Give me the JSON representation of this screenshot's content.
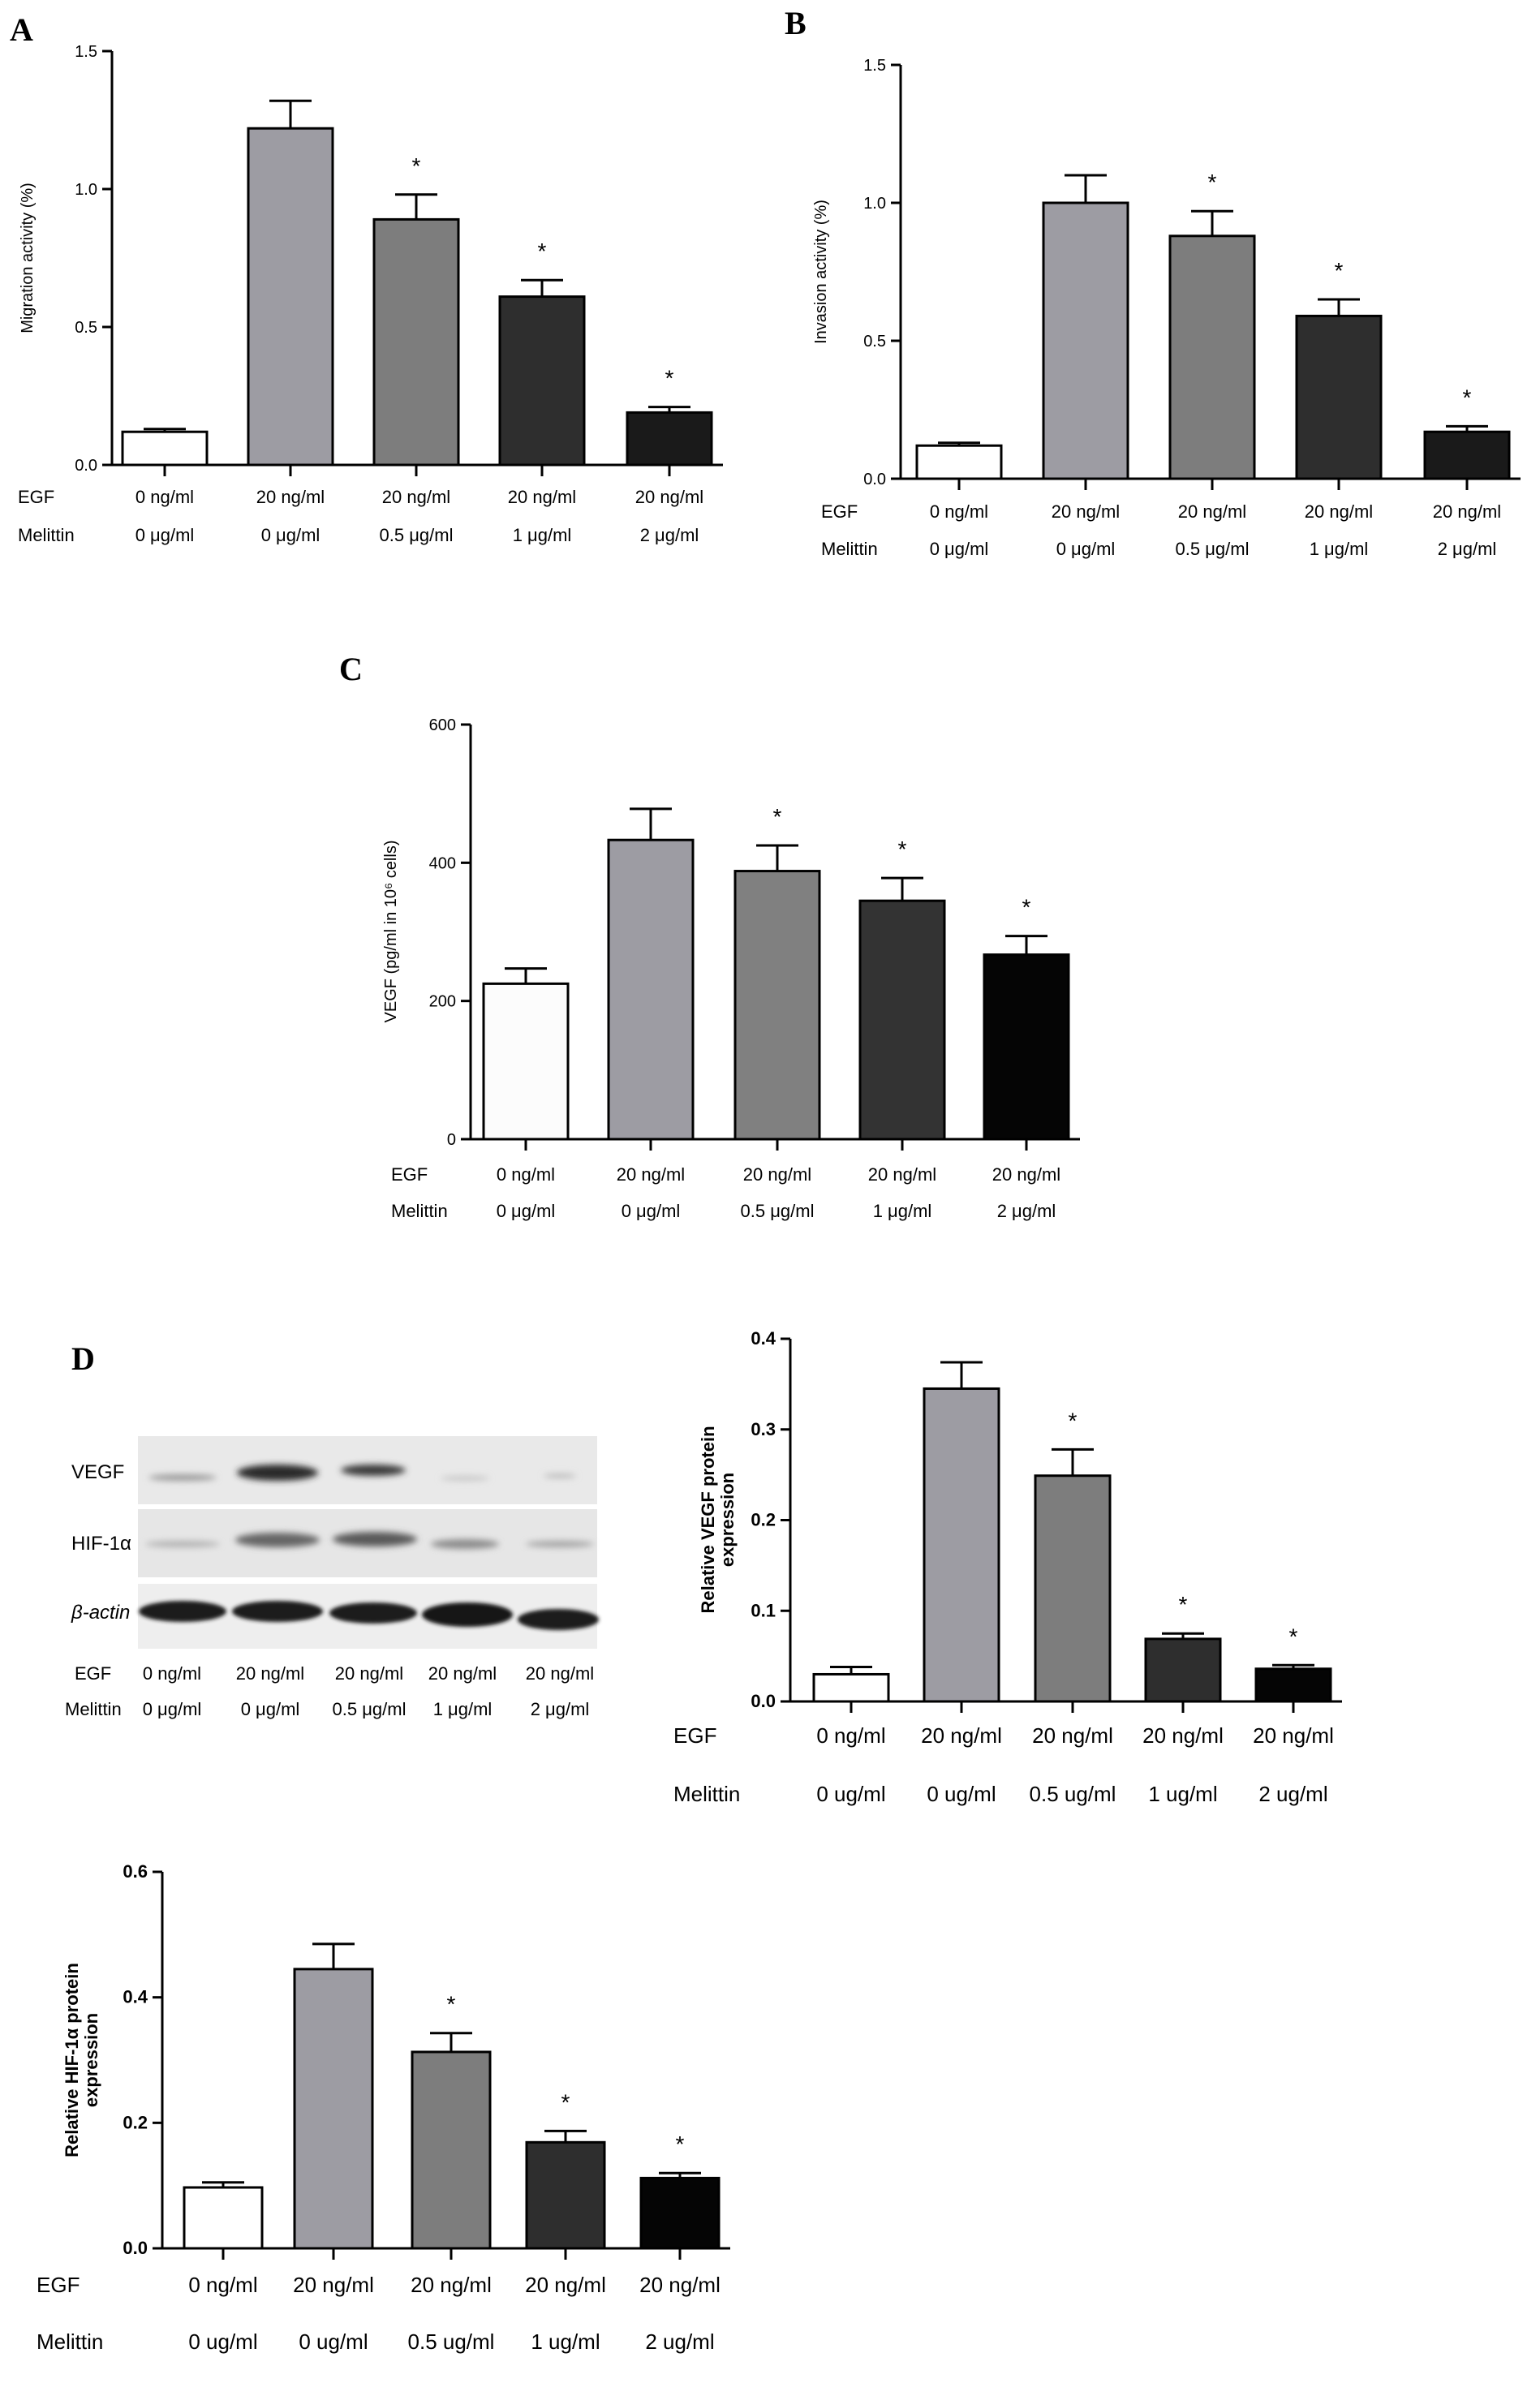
{
  "panel_labels": {
    "a": "A",
    "b": "B",
    "c": "C",
    "d": "D"
  },
  "western_blot": {
    "rows": [
      "VEGF",
      "HIF-1α",
      "β-actin"
    ],
    "egf_label": "EGF",
    "melittin_label": "Melittin",
    "egf": [
      "0 ng/ml",
      "20 ng/ml",
      "20 ng/ml",
      "20 ng/ml",
      "20 ng/ml"
    ],
    "melittin": [
      "0 μg/ml",
      "0 μg/ml",
      "0.5 μg/ml",
      "1 μg/ml",
      "2 μg/ml"
    ]
  },
  "chart_data": [
    {
      "id": "A",
      "type": "bar",
      "ylabel": "Migration activity (%)",
      "ylim": [
        0,
        1.5
      ],
      "yticks": [
        "0.0",
        "0.5",
        "1.0",
        "1.5"
      ],
      "row_labels": [
        "EGF",
        "Melittin"
      ],
      "categories_egf": [
        "0 ng/ml",
        "20 ng/ml",
        "20 ng/ml",
        "20 ng/ml",
        "20 ng/ml"
      ],
      "categories_melittin": [
        "0 μg/ml",
        "0 μg/ml",
        "0.5 μg/ml",
        "1 μg/ml",
        "2 μg/ml"
      ],
      "values": [
        0.12,
        1.22,
        0.89,
        0.61,
        0.19
      ],
      "errors": [
        0.01,
        0.1,
        0.09,
        0.06,
        0.02
      ],
      "significance": [
        "",
        "",
        "*",
        "*",
        "*"
      ],
      "colors": [
        "#ffffff",
        "#9d9ca3",
        "#7d7d7d",
        "#2e2e2e",
        "#1a1a1a"
      ]
    },
    {
      "id": "B",
      "type": "bar",
      "ylabel": "Invasion activity (%)",
      "ylim": [
        0,
        1.5
      ],
      "yticks": [
        "0.0",
        "0.5",
        "1.0",
        "1.5"
      ],
      "row_labels": [
        "EGF",
        "Melittin"
      ],
      "categories_egf": [
        "0 ng/ml",
        "20 ng/ml",
        "20 ng/ml",
        "20 ng/ml",
        "20 ng/ml"
      ],
      "categories_melittin": [
        "0 μg/ml",
        "0 μg/ml",
        "0.5 μg/ml",
        "1 μg/ml",
        "2 μg/ml"
      ],
      "values": [
        0.12,
        1.0,
        0.88,
        0.59,
        0.17
      ],
      "errors": [
        0.01,
        0.1,
        0.09,
        0.06,
        0.02
      ],
      "significance": [
        "",
        "",
        "*",
        "*",
        "*"
      ],
      "colors": [
        "#ffffff",
        "#9d9ca3",
        "#7d7d7d",
        "#2e2e2e",
        "#1a1a1a"
      ]
    },
    {
      "id": "C",
      "type": "bar",
      "ylabel": "VEGF (pg/ml in 10⁶ cells)",
      "ylim": [
        0,
        600
      ],
      "yticks": [
        "0",
        "200",
        "400",
        "600"
      ],
      "row_labels": [
        "EGF",
        "Melittin"
      ],
      "categories_egf": [
        "0 ng/ml",
        "20 ng/ml",
        "20 ng/ml",
        "20 ng/ml",
        "20 ng/ml"
      ],
      "categories_melittin": [
        "0 μg/ml",
        "0 μg/ml",
        "0.5 μg/ml",
        "1 μg/ml",
        "2 μg/ml"
      ],
      "values": [
        225,
        433,
        388,
        345,
        267
      ],
      "errors": [
        22,
        45,
        37,
        33,
        27
      ],
      "significance": [
        "",
        "",
        "*",
        "*",
        "*"
      ],
      "colors": [
        "#fcfcfc",
        "#9d9ca3",
        "#808080",
        "#333333",
        "#050505"
      ]
    },
    {
      "id": "D-VEGF",
      "type": "bar",
      "ylabel": "Relative VEGF protein expression",
      "ylim": [
        0,
        0.4
      ],
      "yticks": [
        "0.0",
        "0.1",
        "0.2",
        "0.3",
        "0.4"
      ],
      "row_labels": [
        "EGF",
        "Melittin"
      ],
      "categories_egf": [
        "0 ng/ml",
        "20 ng/ml",
        "20 ng/ml",
        "20 ng/ml",
        "20 ng/ml"
      ],
      "categories_melittin": [
        "0 ug/ml",
        "0 ug/ml",
        "0.5 ug/ml",
        "1 ug/ml",
        "2 ug/ml"
      ],
      "values": [
        0.03,
        0.345,
        0.249,
        0.069,
        0.036
      ],
      "errors": [
        0.008,
        0.029,
        0.029,
        0.006,
        0.004
      ],
      "significance": [
        "",
        "",
        "*",
        "*",
        "*"
      ],
      "colors": [
        "#ffffff",
        "#9d9ca3",
        "#7d7d7d",
        "#2e2e2e",
        "#050505"
      ]
    },
    {
      "id": "D-HIF",
      "type": "bar",
      "ylabel": "Relative HIF-1α protein expression",
      "ylim": [
        0,
        0.6
      ],
      "yticks": [
        "0.0",
        "0.2",
        "0.4",
        "0.6"
      ],
      "row_labels": [
        "EGF",
        "Melittin"
      ],
      "categories_egf": [
        "0 ng/ml",
        "20 ng/ml",
        "20 ng/ml",
        "20 ng/ml",
        "20 ng/ml"
      ],
      "categories_melittin": [
        "0 ug/ml",
        "0 ug/ml",
        "0.5 ug/ml",
        "1 ug/ml",
        "2 ug/ml"
      ],
      "values": [
        0.097,
        0.445,
        0.313,
        0.169,
        0.112
      ],
      "errors": [
        0.008,
        0.04,
        0.03,
        0.018,
        0.008
      ],
      "significance": [
        "",
        "",
        "*",
        "*",
        "*"
      ],
      "colors": [
        "#ffffff",
        "#9d9ca3",
        "#7d7d7d",
        "#2e2e2e",
        "#050505"
      ]
    }
  ]
}
